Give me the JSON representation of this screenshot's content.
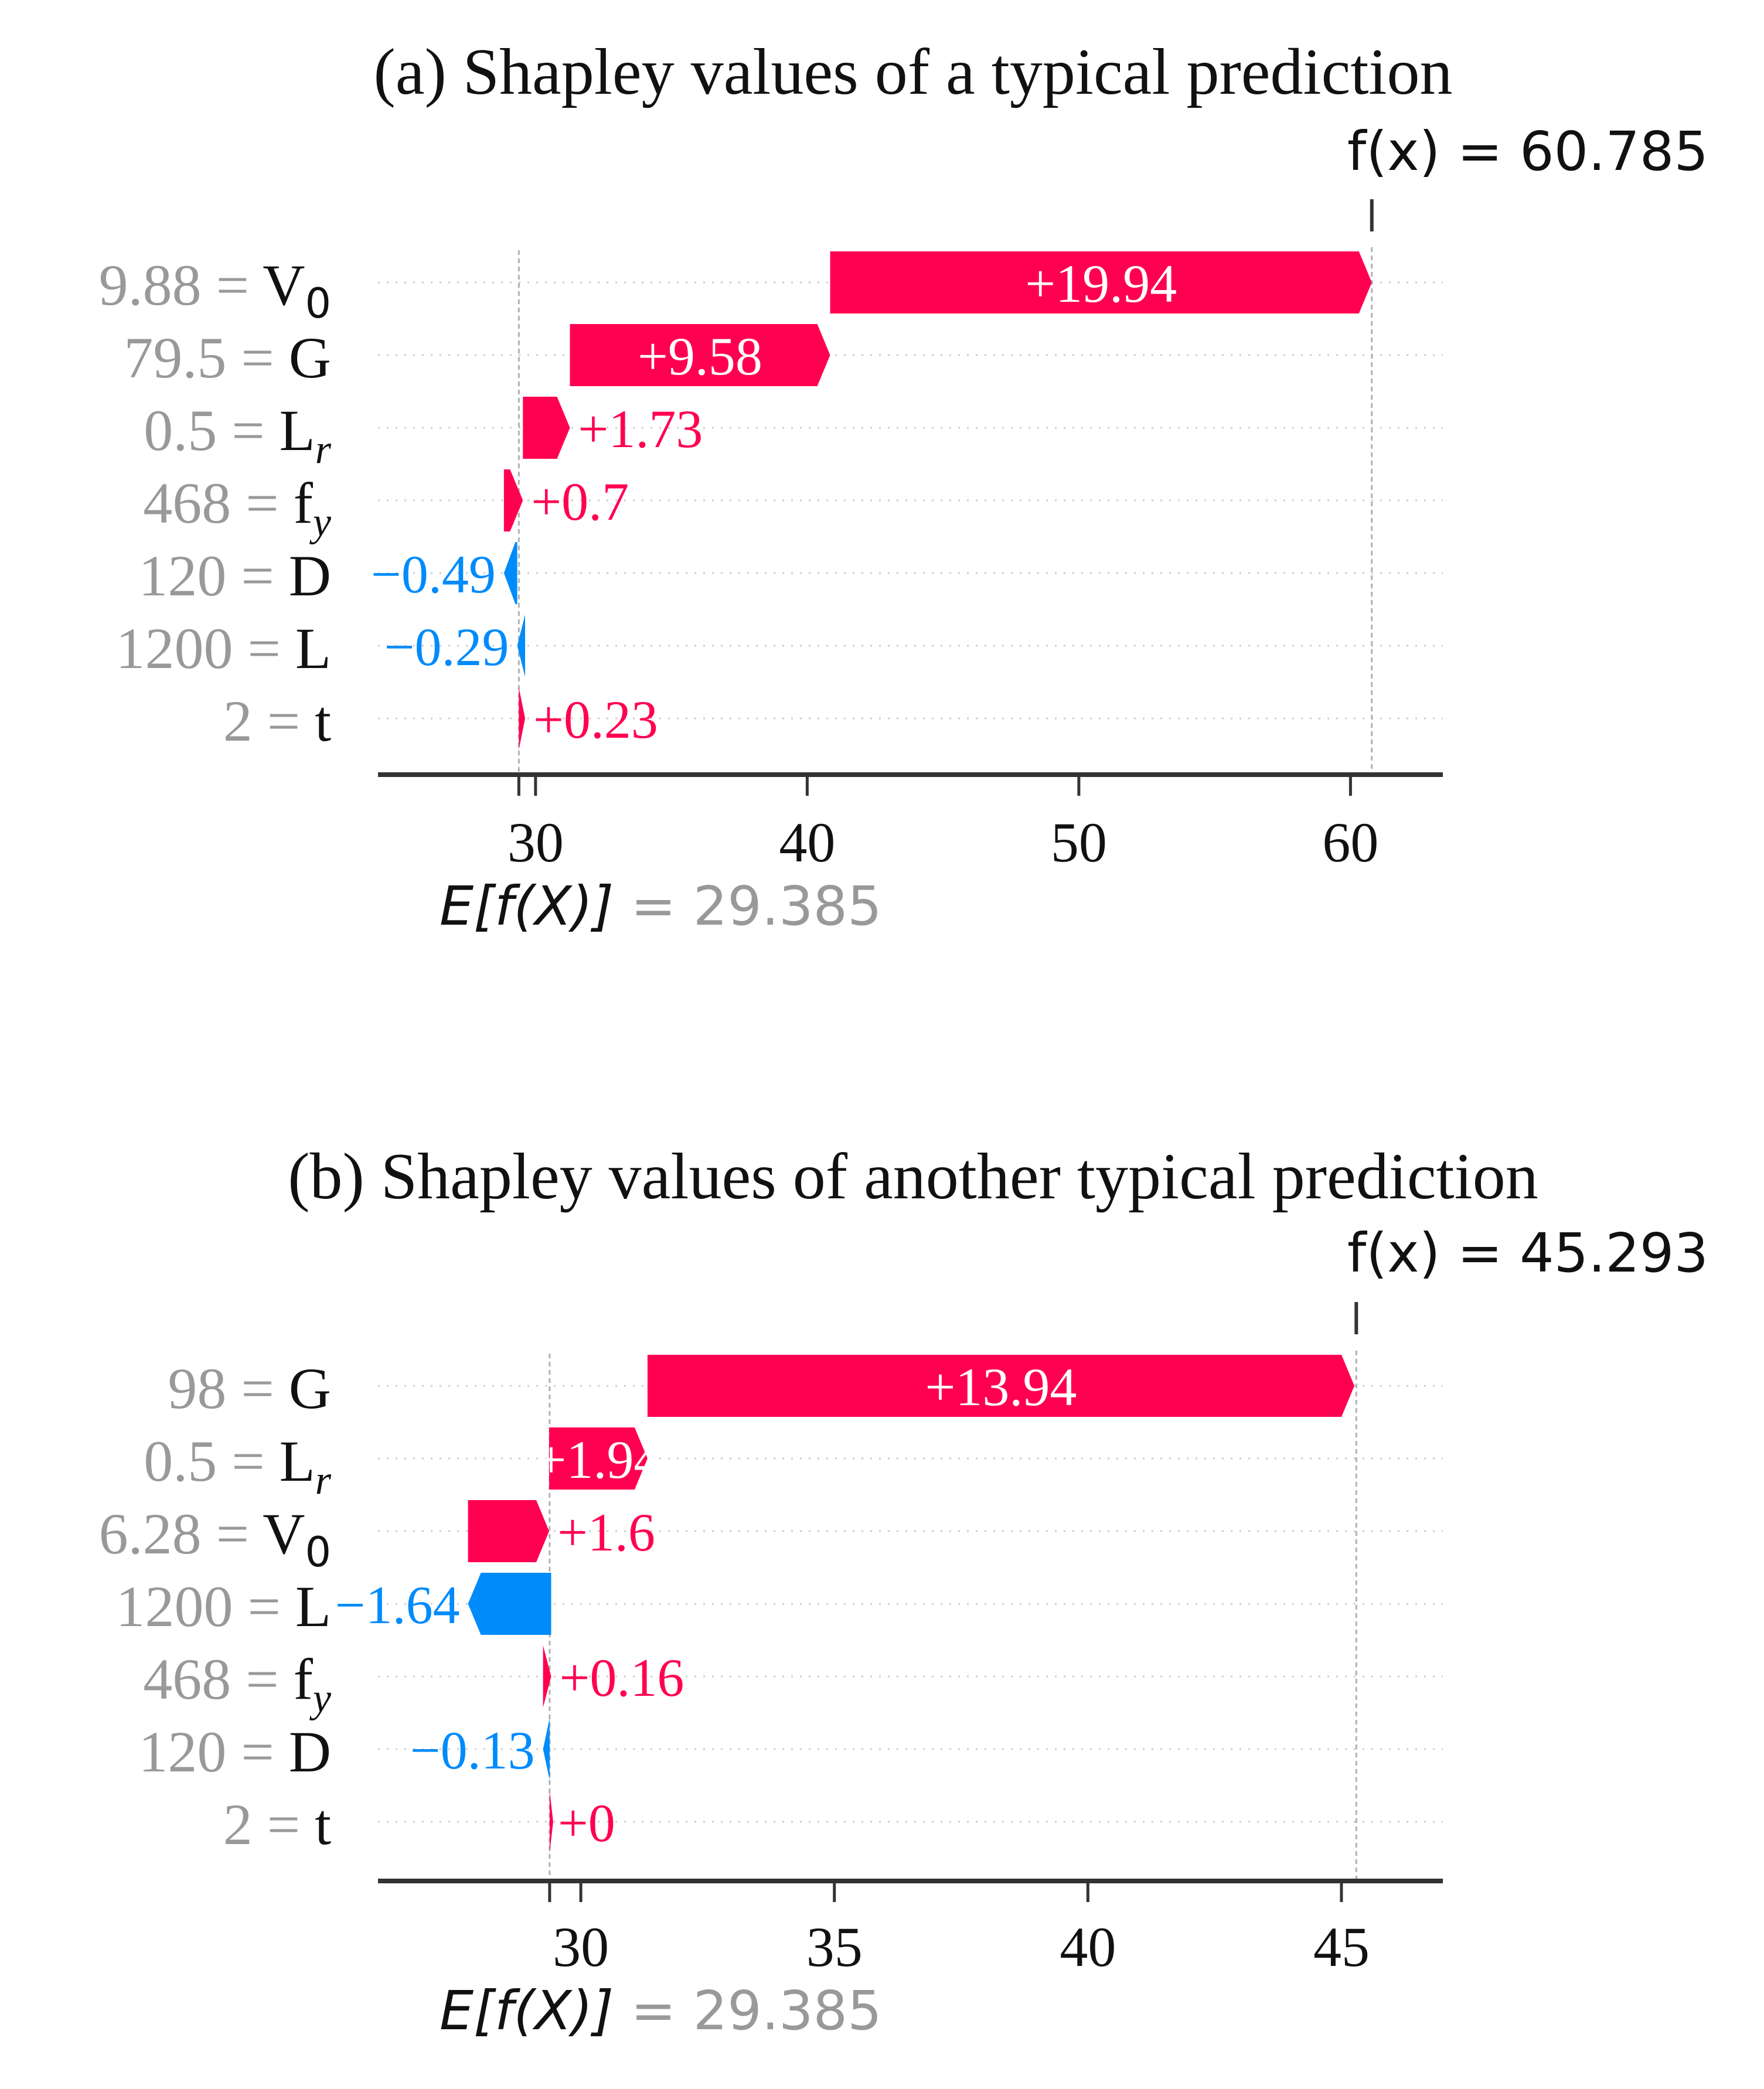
{
  "colors": {
    "positive": "#ff0051",
    "negative": "#008bfb",
    "text_dark": "#111111",
    "text_gray": "#999999",
    "axis": "#333333",
    "gridline": "#cccccc"
  },
  "chart_data": [
    {
      "type": "waterfall",
      "title": "(a) Shapley values of a typical prediction",
      "fx_label": "f(x) = 60.785",
      "fx_value": 60.785,
      "base_label_prefix": "E[f(X)]",
      "base_label_value": " = 29.385",
      "base_value": 29.385,
      "xlim": [
        24.2,
        63.4
      ],
      "xticks": [
        30,
        40,
        50,
        60
      ],
      "features": [
        {
          "value": "9.88",
          "name": "V",
          "sub": "0",
          "contribution": 19.94,
          "label": "+19.94"
        },
        {
          "value": "79.5",
          "name": "G",
          "sub": "",
          "contribution": 9.58,
          "label": "+9.58"
        },
        {
          "value": "0.5",
          "name": "L",
          "sub": "r",
          "contribution": 1.73,
          "label": "+1.73"
        },
        {
          "value": "468",
          "name": "f",
          "sub": "y",
          "contribution": 0.7,
          "label": "+0.7"
        },
        {
          "value": "120",
          "name": "D",
          "sub": "",
          "contribution": -0.49,
          "label": "−0.49"
        },
        {
          "value": "1200",
          "name": "L",
          "sub": "",
          "contribution": -0.29,
          "label": "−0.29"
        },
        {
          "value": "2",
          "name": "t",
          "sub": "",
          "contribution": 0.23,
          "label": "+0.23"
        }
      ]
    },
    {
      "type": "waterfall",
      "title": "(b) Shapley values of another typical prediction",
      "fx_label": "f(x) = 45.293",
      "fx_value": 45.293,
      "base_label_prefix": "E[f(X)]",
      "base_label_value": " = 29.385",
      "base_value": 29.385,
      "xlim": [
        26.0,
        47.0
      ],
      "xticks": [
        30,
        35,
        40,
        45
      ],
      "features": [
        {
          "value": "98",
          "name": "G",
          "sub": "",
          "contribution": 13.94,
          "label": "+13.94"
        },
        {
          "value": "0.5",
          "name": "L",
          "sub": "r",
          "contribution": 1.94,
          "label": "+1.94"
        },
        {
          "value": "6.28",
          "name": "V",
          "sub": "0",
          "contribution": 1.6,
          "label": "+1.6"
        },
        {
          "value": "1200",
          "name": "L",
          "sub": "",
          "contribution": -1.64,
          "label": "−1.64"
        },
        {
          "value": "468",
          "name": "f",
          "sub": "y",
          "contribution": 0.16,
          "label": "+0.16"
        },
        {
          "value": "120",
          "name": "D",
          "sub": "",
          "contribution": -0.13,
          "label": "−0.13"
        },
        {
          "value": "2",
          "name": "t",
          "sub": "",
          "contribution": 0.0,
          "label": "+0"
        }
      ]
    }
  ]
}
